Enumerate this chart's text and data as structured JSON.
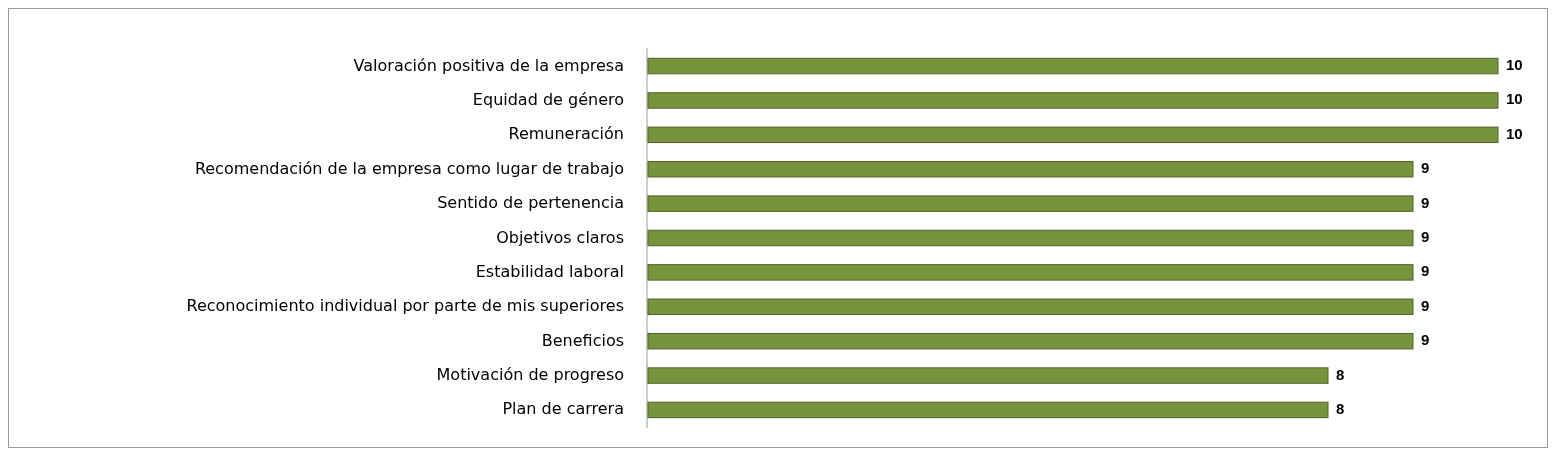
{
  "chart_data": {
    "type": "bar",
    "orientation": "horizontal",
    "categories": [
      "Valoración positiva de la empresa",
      "Equidad de género",
      "Remuneración",
      "Recomendación de la empresa como lugar de trabajo",
      "Sentido de pertenencia",
      "Objetivos claros",
      "Estabilidad laboral",
      "Reconocimiento individual por parte de mis superiores",
      "Beneficios",
      "Motivación de progreso",
      "Plan de carrera"
    ],
    "values": [
      10,
      10,
      10,
      9,
      9,
      9,
      9,
      9,
      9,
      8,
      8
    ],
    "color": "#77933c",
    "data_labels": true
  }
}
